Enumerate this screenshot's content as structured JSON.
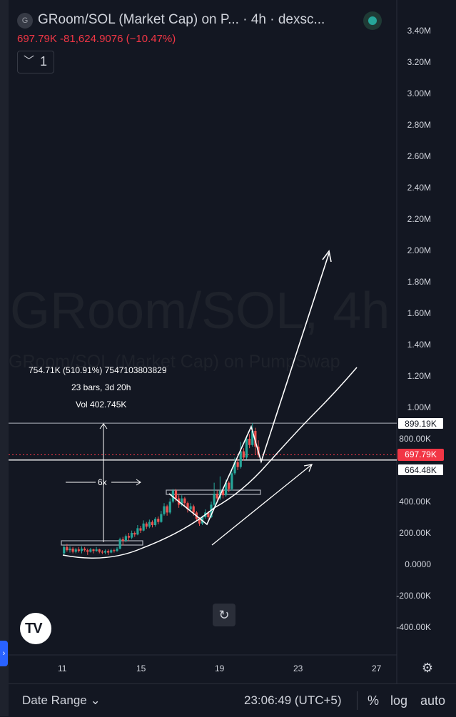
{
  "header": {
    "logo_letter": "G",
    "title": "GRoom/SOL (Market Cap) on P... · 4h · dexsc...",
    "price_line": "697.79K  -81,624.9076 (−10.47%)",
    "indicator_chevron": "﹀",
    "indicator_count": "1"
  },
  "watermark": {
    "symbol": "GRoom/SOL, 4h",
    "description": "GRoom/SOL (Market Cap) on PumpSwap"
  },
  "measure_tool": {
    "line1": "754.71K (510.91%) 7547103803829",
    "line2": "23 bars, 3d 20h",
    "line3": "Vol 402.745K",
    "multiplier": "6x"
  },
  "price_tags": {
    "upper": "899.19K",
    "current": "697.79K",
    "lower": "664.48K"
  },
  "toolbar": {
    "date_range": "Date Range ⌄",
    "clock": "23:06:49 (UTC+5)",
    "percent": "%",
    "log": "log",
    "auto": "auto",
    "replay_icon": "↻",
    "settings_icon": "⚙",
    "tv_logo": "TV"
  },
  "colors": {
    "background": "#131722",
    "up": "#26a69a",
    "down": "#ef5350",
    "price_red": "#f23645",
    "drawing": "#ffffff"
  },
  "chart_data": {
    "type": "candlestick",
    "title": "GRoom/SOL (Market Cap) on PumpSwap",
    "interval": "4h",
    "y_axis_labels": [
      "3.40M",
      "3.20M",
      "3.00M",
      "2.80M",
      "2.60M",
      "2.40M",
      "2.20M",
      "2.00M",
      "1.80M",
      "1.60M",
      "1.40M",
      "1.20M",
      "1.00M",
      "800.00K",
      "400.00K",
      "200.00K",
      "0.0000",
      "-200.00K",
      "-400.00K"
    ],
    "x_axis_labels": [
      "11",
      "15",
      "19",
      "23",
      "27"
    ],
    "ylim": [
      -500000,
      3500000
    ],
    "x_label_days": [
      11,
      15,
      19,
      23,
      27
    ],
    "y_values": [
      3400000,
      3200000,
      3000000,
      2800000,
      2600000,
      2400000,
      2200000,
      2000000,
      1800000,
      1600000,
      1400000,
      1200000,
      1000000,
      800000,
      400000,
      200000,
      0,
      -200000,
      -400000
    ],
    "candles": [
      [
        11.1,
        70000,
        110000,
        55000,
        120000
      ],
      [
        11.25,
        110000,
        90000,
        80000,
        130000
      ],
      [
        11.4,
        90000,
        100000,
        75000,
        115000
      ],
      [
        11.55,
        100000,
        80000,
        70000,
        110000
      ],
      [
        11.7,
        80000,
        95000,
        70000,
        105000
      ],
      [
        11.85,
        95000,
        85000,
        75000,
        110000
      ],
      [
        12.0,
        85000,
        100000,
        70000,
        115000
      ],
      [
        12.15,
        100000,
        90000,
        80000,
        110000
      ],
      [
        12.3,
        90000,
        80000,
        60000,
        100000
      ],
      [
        12.45,
        80000,
        95000,
        75000,
        105000
      ],
      [
        12.6,
        95000,
        85000,
        70000,
        100000
      ],
      [
        12.75,
        85000,
        95000,
        80000,
        110000
      ],
      [
        12.9,
        95000,
        80000,
        70000,
        100000
      ],
      [
        13.05,
        80000,
        75000,
        65000,
        90000
      ],
      [
        13.2,
        75000,
        85000,
        65000,
        95000
      ],
      [
        13.35,
        85000,
        75000,
        60000,
        95000
      ],
      [
        13.5,
        75000,
        90000,
        70000,
        100000
      ],
      [
        13.65,
        90000,
        85000,
        75000,
        100000
      ],
      [
        13.8,
        85000,
        100000,
        80000,
        110000
      ],
      [
        13.95,
        100000,
        160000,
        95000,
        170000
      ],
      [
        14.1,
        160000,
        150000,
        120000,
        175000
      ],
      [
        14.25,
        150000,
        180000,
        140000,
        190000
      ],
      [
        14.4,
        180000,
        170000,
        150000,
        200000
      ],
      [
        14.55,
        170000,
        200000,
        160000,
        215000
      ],
      [
        14.7,
        200000,
        190000,
        175000,
        210000
      ],
      [
        14.85,
        190000,
        230000,
        185000,
        250000
      ],
      [
        15.0,
        230000,
        215000,
        200000,
        245000
      ],
      [
        15.15,
        215000,
        260000,
        210000,
        280000
      ],
      [
        15.3,
        260000,
        240000,
        225000,
        270000
      ],
      [
        15.45,
        240000,
        270000,
        230000,
        285000
      ],
      [
        15.6,
        270000,
        250000,
        235000,
        280000
      ],
      [
        15.75,
        250000,
        290000,
        240000,
        300000
      ],
      [
        15.9,
        290000,
        270000,
        255000,
        305000
      ],
      [
        16.05,
        270000,
        320000,
        265000,
        340000
      ],
      [
        16.2,
        320000,
        370000,
        310000,
        390000
      ],
      [
        16.35,
        370000,
        330000,
        310000,
        380000
      ],
      [
        16.5,
        330000,
        400000,
        320000,
        420000
      ],
      [
        16.65,
        400000,
        470000,
        390000,
        480000
      ],
      [
        16.8,
        470000,
        420000,
        400000,
        480000
      ],
      [
        16.95,
        420000,
        380000,
        360000,
        440000
      ],
      [
        17.1,
        380000,
        420000,
        370000,
        440000
      ],
      [
        17.25,
        420000,
        390000,
        370000,
        430000
      ],
      [
        17.4,
        390000,
        350000,
        330000,
        400000
      ],
      [
        17.55,
        350000,
        370000,
        340000,
        390000
      ],
      [
        17.7,
        370000,
        330000,
        310000,
        380000
      ],
      [
        17.85,
        330000,
        290000,
        280000,
        340000
      ],
      [
        18.0,
        290000,
        260000,
        245000,
        300000
      ],
      [
        18.15,
        260000,
        300000,
        250000,
        310000
      ],
      [
        18.3,
        300000,
        330000,
        290000,
        350000
      ],
      [
        18.45,
        330000,
        300000,
        290000,
        340000
      ],
      [
        18.6,
        300000,
        380000,
        295000,
        400000
      ],
      [
        18.75,
        380000,
        450000,
        370000,
        520000
      ],
      [
        18.9,
        450000,
        420000,
        400000,
        470000
      ],
      [
        19.05,
        420000,
        470000,
        410000,
        560000
      ],
      [
        19.2,
        470000,
        440000,
        420000,
        490000
      ],
      [
        19.35,
        440000,
        520000,
        430000,
        540000
      ],
      [
        19.5,
        520000,
        480000,
        460000,
        530000
      ],
      [
        19.65,
        480000,
        580000,
        470000,
        610000
      ],
      [
        19.8,
        580000,
        650000,
        570000,
        680000
      ],
      [
        19.95,
        650000,
        620000,
        600000,
        670000
      ],
      [
        20.1,
        620000,
        720000,
        610000,
        780000
      ],
      [
        20.25,
        720000,
        680000,
        660000,
        740000
      ],
      [
        20.4,
        680000,
        800000,
        670000,
        820000
      ],
      [
        20.55,
        800000,
        760000,
        740000,
        830000
      ],
      [
        20.7,
        760000,
        850000,
        750000,
        899190
      ],
      [
        20.85,
        850000,
        750000,
        700000,
        870000
      ],
      [
        21.0,
        750000,
        697790,
        680000,
        790000
      ]
    ],
    "columns": [
      "day",
      "open",
      "close",
      "low",
      "high"
    ],
    "horizontal_lines": [
      899190,
      664480,
      697790
    ],
    "last_price": 697790,
    "change": -81624.9076,
    "change_percent": -10.47
  }
}
